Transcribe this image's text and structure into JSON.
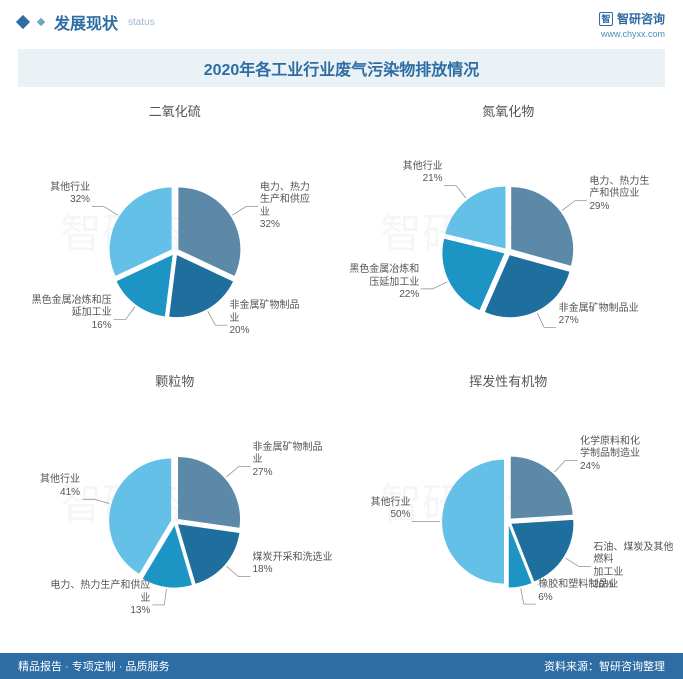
{
  "header": {
    "title_cn": "发展现状",
    "title_en": "status",
    "brand": "智研咨询",
    "brand_icon_text": "智",
    "url": "www.chyxx.com"
  },
  "chart_title": "2020年各工业行业废气污染物排放情况",
  "palette": {
    "c1": "#5d89a8",
    "c2": "#1f6f9e",
    "c3": "#1c94c4",
    "c4": "#65c0e8",
    "bg": "#ffffff"
  },
  "pie_radius": 62,
  "pie_explode": 4,
  "charts": [
    {
      "subtitle": "二氧化硫",
      "slices": [
        {
          "label": "电力、热力\n生产和供应\n业",
          "value": 32,
          "color": "#5d89a8"
        },
        {
          "label": "非金属矿物制品\n业",
          "value": 20,
          "color": "#1f6f9e"
        },
        {
          "label": "黑色金属冶炼和压\n延加工业",
          "value": 16,
          "color": "#1c94c4"
        },
        {
          "label": "其他行业",
          "value": 32,
          "color": "#65c0e8"
        }
      ]
    },
    {
      "subtitle": "氮氧化物",
      "slices": [
        {
          "label": "电力、热力生\n产和供应业",
          "value": 29,
          "color": "#5d89a8"
        },
        {
          "label": "非金属矿物制品业",
          "value": 27,
          "color": "#1f6f9e"
        },
        {
          "label": "黑色金属冶炼和\n压延加工业",
          "value": 22,
          "color": "#1c94c4"
        },
        {
          "label": "其他行业",
          "value": 21,
          "color": "#65c0e8"
        }
      ]
    },
    {
      "subtitle": "颗粒物",
      "slices": [
        {
          "label": "非金属矿物制品\n业",
          "value": 27,
          "color": "#5d89a8"
        },
        {
          "label": "煤炭开采和洗选业",
          "value": 18,
          "color": "#1f6f9e"
        },
        {
          "label": "电力、热力生产和供应业",
          "value": 13,
          "color": "#1c94c4"
        },
        {
          "label": "其他行业",
          "value": 41,
          "color": "#65c0e8"
        }
      ]
    },
    {
      "subtitle": "挥发性有机物",
      "slices": [
        {
          "label": "化学原料和化\n学制品制造业",
          "value": 24,
          "color": "#5d89a8"
        },
        {
          "label": "石油、煤炭及其他燃料\n加工业",
          "value": 20,
          "color": "#1f6f9e"
        },
        {
          "label": "橡胶和塑料制品业",
          "value": 6,
          "color": "#1c94c4"
        },
        {
          "label": "其他行业",
          "value": 50,
          "color": "#65c0e8"
        }
      ]
    }
  ],
  "footer": {
    "left": "精品报告 · 专项定制 · 品质服务",
    "right": "资料来源：智研咨询整理"
  },
  "watermark_text": "智研咨询"
}
